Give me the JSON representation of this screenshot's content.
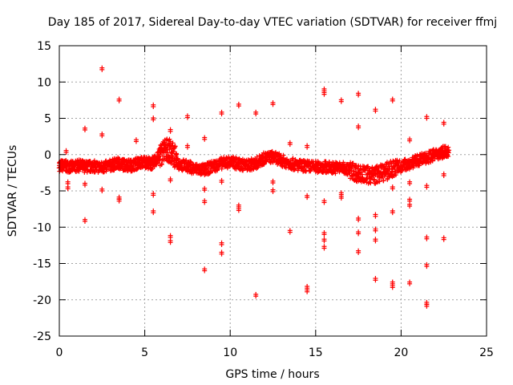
{
  "chart_data": {
    "type": "scatter",
    "title": "Day 185 of 2017, Sidereal Day-to-day VTEC variation (SDTVAR) for receiver ffmj",
    "xlabel": "GPS time / hours",
    "ylabel": "SDTVAR / TECUs",
    "xlim": [
      0,
      25
    ],
    "ylim": [
      -25,
      15
    ],
    "xticks": [
      "0",
      "5",
      "10",
      "15",
      "20",
      "25"
    ],
    "yticks": [
      "15",
      "10",
      "5",
      "0",
      "-5",
      "-10",
      "-15",
      "-20",
      "-25"
    ],
    "grid": true,
    "marker_color": "#ff0000",
    "main_band": [
      [
        0.0,
        -1.5
      ],
      [
        0.4,
        -1.6
      ],
      [
        0.8,
        -1.7
      ],
      [
        1.2,
        -1.5
      ],
      [
        1.6,
        -1.7
      ],
      [
        2.0,
        -1.6
      ],
      [
        2.5,
        -1.8
      ],
      [
        3.0,
        -1.5
      ],
      [
        3.4,
        -1.2
      ],
      [
        3.8,
        -1.4
      ],
      [
        4.2,
        -1.5
      ],
      [
        4.6,
        -1.2
      ],
      [
        5.0,
        -1.0
      ],
      [
        5.4,
        -1.3
      ],
      [
        5.8,
        -0.4
      ],
      [
        6.2,
        0.8
      ],
      [
        6.6,
        0.3
      ],
      [
        7.0,
        -1.3
      ],
      [
        7.5,
        -1.6
      ],
      [
        8.0,
        -2.0
      ],
      [
        8.5,
        -2.1
      ],
      [
        9.0,
        -1.6
      ],
      [
        9.5,
        -1.2
      ],
      [
        10.0,
        -1.0
      ],
      [
        10.5,
        -1.3
      ],
      [
        11.0,
        -1.5
      ],
      [
        11.5,
        -1.2
      ],
      [
        12.0,
        -0.5
      ],
      [
        12.5,
        -0.3
      ],
      [
        13.0,
        -0.8
      ],
      [
        13.5,
        -1.2
      ],
      [
        14.0,
        -1.5
      ],
      [
        14.5,
        -1.6
      ],
      [
        15.0,
        -1.7
      ],
      [
        15.5,
        -1.7
      ],
      [
        16.0,
        -1.8
      ],
      [
        16.5,
        -1.8
      ],
      [
        17.0,
        -2.1
      ],
      [
        17.5,
        -2.6
      ],
      [
        18.0,
        -2.8
      ],
      [
        18.5,
        -2.8
      ],
      [
        19.0,
        -2.4
      ],
      [
        19.5,
        -2.0
      ],
      [
        20.0,
        -1.6
      ],
      [
        20.5,
        -1.2
      ],
      [
        21.0,
        -0.8
      ],
      [
        21.5,
        -0.4
      ],
      [
        22.0,
        0.0
      ],
      [
        22.4,
        0.3
      ],
      [
        22.8,
        0.6
      ]
    ],
    "outliers": [
      [
        0.4,
        0.3
      ],
      [
        0.5,
        -4.0
      ],
      [
        0.5,
        -4.7
      ],
      [
        1.5,
        3.4
      ],
      [
        1.5,
        -4.2
      ],
      [
        1.5,
        -9.2
      ],
      [
        2.5,
        11.7
      ],
      [
        2.5,
        2.6
      ],
      [
        2.5,
        -5.0
      ],
      [
        3.5,
        7.4
      ],
      [
        3.5,
        -6.1
      ],
      [
        3.5,
        -6.4
      ],
      [
        4.5,
        1.8
      ],
      [
        5.5,
        6.6
      ],
      [
        5.5,
        4.8
      ],
      [
        5.5,
        -5.6
      ],
      [
        5.5,
        -8.0
      ],
      [
        6.5,
        3.2
      ],
      [
        6.5,
        -3.6
      ],
      [
        6.5,
        -11.4
      ],
      [
        6.5,
        -12.1
      ],
      [
        7.5,
        5.1
      ],
      [
        7.5,
        1.0
      ],
      [
        8.5,
        2.1
      ],
      [
        8.5,
        -4.9
      ],
      [
        8.5,
        -6.6
      ],
      [
        8.5,
        -16.0
      ],
      [
        9.5,
        5.6
      ],
      [
        9.5,
        -3.8
      ],
      [
        9.5,
        -12.4
      ],
      [
        9.5,
        -13.7
      ],
      [
        10.5,
        6.7
      ],
      [
        10.5,
        -7.2
      ],
      [
        10.5,
        -7.7
      ],
      [
        11.5,
        5.6
      ],
      [
        11.5,
        -19.5
      ],
      [
        12.5,
        6.9
      ],
      [
        12.5,
        -3.9
      ],
      [
        12.5,
        -5.1
      ],
      [
        13.5,
        1.4
      ],
      [
        13.5,
        -10.7
      ],
      [
        14.5,
        1.0
      ],
      [
        14.5,
        -5.9
      ],
      [
        14.5,
        -18.4
      ],
      [
        14.5,
        -18.9
      ],
      [
        15.5,
        8.8
      ],
      [
        15.5,
        8.3
      ],
      [
        15.5,
        -6.6
      ],
      [
        15.5,
        -11.0
      ],
      [
        15.5,
        -11.9
      ],
      [
        15.5,
        -12.9
      ],
      [
        16.5,
        7.3
      ],
      [
        16.5,
        -5.5
      ],
      [
        16.5,
        -6.0
      ],
      [
        17.5,
        8.2
      ],
      [
        17.5,
        3.7
      ],
      [
        17.5,
        -9.0
      ],
      [
        17.5,
        -10.9
      ],
      [
        17.5,
        -13.5
      ],
      [
        18.5,
        6.0
      ],
      [
        18.5,
        -8.5
      ],
      [
        18.5,
        -10.5
      ],
      [
        18.5,
        -11.9
      ],
      [
        18.5,
        -17.3
      ],
      [
        19.5,
        7.4
      ],
      [
        19.5,
        -4.7
      ],
      [
        19.5,
        -8.0
      ],
      [
        19.5,
        -17.8
      ],
      [
        19.5,
        -18.3
      ],
      [
        20.5,
        1.9
      ],
      [
        20.5,
        -4.0
      ],
      [
        20.5,
        -6.4
      ],
      [
        20.5,
        -7.1
      ],
      [
        20.5,
        -17.8
      ],
      [
        21.5,
        5.0
      ],
      [
        21.5,
        -4.5
      ],
      [
        21.5,
        -11.6
      ],
      [
        21.5,
        -15.4
      ],
      [
        21.5,
        -20.6
      ],
      [
        21.5,
        -20.9
      ],
      [
        22.5,
        4.2
      ],
      [
        22.5,
        -2.9
      ],
      [
        22.5,
        -11.7
      ]
    ]
  }
}
